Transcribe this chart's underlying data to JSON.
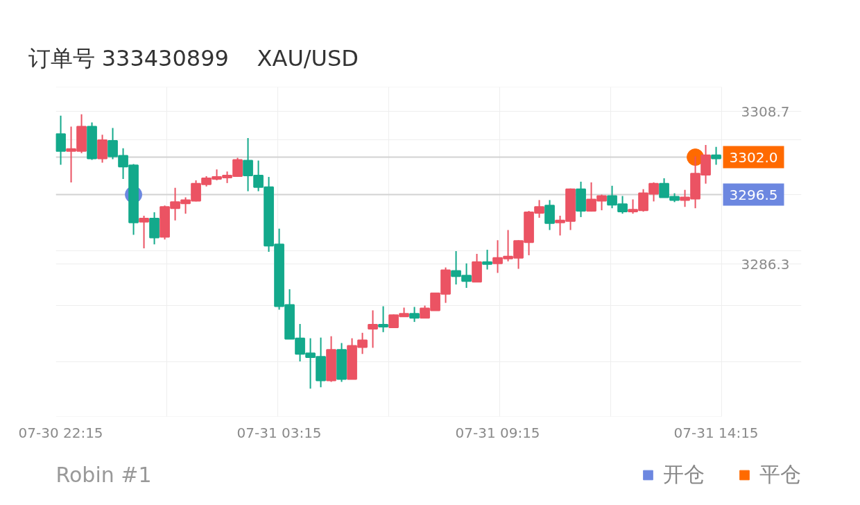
{
  "chart_data": {
    "type": "candlestick",
    "title": "订单号 333430899    XAU/USD",
    "categories": [
      "07-30 22:15",
      null,
      null,
      null,
      null,
      null,
      null,
      null,
      null,
      null,
      null,
      null,
      null,
      null,
      null,
      null,
      null,
      null,
      null,
      null,
      null,
      "07-31 03:15",
      null,
      null,
      null,
      null,
      null,
      null,
      null,
      null,
      null,
      null,
      null,
      null,
      null,
      null,
      null,
      null,
      null,
      null,
      null,
      null,
      "07-31 09:15",
      null,
      null,
      null,
      null,
      null,
      null,
      null,
      null,
      null,
      null,
      null,
      null,
      null,
      null,
      null,
      null,
      null,
      null,
      null,
      null,
      "07-31 14:15"
    ],
    "ohlc": [
      [
        3305.4,
        3308.1,
        3300.9,
        3302.9
      ],
      [
        3302.9,
        3306.5,
        3298.3,
        3303.2
      ],
      [
        3302.9,
        3308.3,
        3302.6,
        3306.5
      ],
      [
        3306.5,
        3307.1,
        3301.6,
        3301.8
      ],
      [
        3301.8,
        3305.3,
        3301.2,
        3304.5
      ],
      [
        3304.4,
        3306.3,
        3301.7,
        3302.1
      ],
      [
        3302.2,
        3303.3,
        3298.8,
        3300.6
      ],
      [
        3300.8,
        3301.0,
        3290.6,
        3292.4
      ],
      [
        3292.5,
        3293.4,
        3288.6,
        3293.0
      ],
      [
        3293.0,
        3293.9,
        3289.2,
        3290.2
      ],
      [
        3290.3,
        3294.9,
        3289.9,
        3294.7
      ],
      [
        3294.5,
        3297.5,
        3292.7,
        3295.4
      ],
      [
        3295.2,
        3296.1,
        3293.7,
        3295.7
      ],
      [
        3295.6,
        3298.6,
        3295.5,
        3298.1
      ],
      [
        3298.0,
        3299.2,
        3297.7,
        3298.9
      ],
      [
        3298.8,
        3300.2,
        3298.6,
        3299.1
      ],
      [
        3299.0,
        3299.9,
        3298.2,
        3299.3
      ],
      [
        3299.2,
        3301.9,
        3299.1,
        3301.6
      ],
      [
        3301.5,
        3304.8,
        3297.0,
        3299.3
      ],
      [
        3299.3,
        3301.5,
        3297.0,
        3297.6
      ],
      [
        3297.6,
        3299.1,
        3288.1,
        3289.0
      ],
      [
        3289.2,
        3291.5,
        3279.6,
        3280.1
      ],
      [
        3280.3,
        3282.6,
        3275.3,
        3275.3
      ],
      [
        3275.4,
        3277.5,
        3272.0,
        3273.1
      ],
      [
        3273.2,
        3275.4,
        3268.0,
        3272.6
      ],
      [
        3272.7,
        3275.5,
        3268.2,
        3269.2
      ],
      [
        3269.2,
        3275.7,
        3269.0,
        3273.7
      ],
      [
        3273.7,
        3274.7,
        3269.0,
        3269.4
      ],
      [
        3269.4,
        3275.4,
        3269.4,
        3274.3
      ],
      [
        3274.1,
        3276.2,
        3273.1,
        3275.1
      ],
      [
        3276.8,
        3279.5,
        3274.0,
        3277.4
      ],
      [
        3277.4,
        3280.1,
        3276.3,
        3277.1
      ],
      [
        3277.0,
        3278.9,
        3277.0,
        3278.8
      ],
      [
        3278.6,
        3279.9,
        3278.6,
        3279.0
      ],
      [
        3279.0,
        3280.0,
        3277.8,
        3278.4
      ],
      [
        3278.4,
        3280.2,
        3278.4,
        3279.8
      ],
      [
        3279.5,
        3282.0,
        3279.5,
        3282.0
      ],
      [
        3281.9,
        3285.8,
        3280.6,
        3285.4
      ],
      [
        3285.3,
        3288.2,
        3283.3,
        3284.5
      ],
      [
        3284.6,
        3286.4,
        3282.8,
        3283.8
      ],
      [
        3283.7,
        3287.8,
        3283.7,
        3286.6
      ],
      [
        3286.6,
        3288.4,
        3285.5,
        3286.3
      ],
      [
        3286.4,
        3289.8,
        3285.0,
        3287.2
      ],
      [
        3287.1,
        3291.3,
        3286.7,
        3287.4
      ],
      [
        3287.2,
        3289.8,
        3285.6,
        3289.7
      ],
      [
        3289.5,
        3294.1,
        3287.6,
        3293.9
      ],
      [
        3293.8,
        3295.7,
        3293.1,
        3294.7
      ],
      [
        3294.9,
        3295.7,
        3291.3,
        3292.3
      ],
      [
        3292.4,
        3293.4,
        3290.5,
        3292.7
      ],
      [
        3292.6,
        3297.4,
        3291.3,
        3297.3
      ],
      [
        3297.3,
        3298.4,
        3293.2,
        3294.1
      ],
      [
        3294.1,
        3298.3,
        3294.0,
        3295.8
      ],
      [
        3295.6,
        3296.5,
        3294.2,
        3296.3
      ],
      [
        3296.3,
        3297.8,
        3294.5,
        3295.0
      ],
      [
        3295.1,
        3296.3,
        3293.7,
        3294.0
      ],
      [
        3294.0,
        3295.8,
        3293.7,
        3294.3
      ],
      [
        3294.2,
        3297.3,
        3294.0,
        3296.7
      ],
      [
        3296.6,
        3298.3,
        3295.5,
        3298.1
      ],
      [
        3298.1,
        3298.9,
        3296.1,
        3296.1
      ],
      [
        3296.2,
        3296.7,
        3295.4,
        3295.7
      ],
      [
        3295.7,
        3297.2,
        3294.7,
        3296.1
      ],
      [
        3295.9,
        3302.1,
        3294.5,
        3299.6
      ],
      [
        3299.4,
        3303.8,
        3298.1,
        3302.3
      ],
      [
        3302.3,
        3303.5,
        3300.9,
        3301.8
      ]
    ],
    "colors": [
      "#13a98b",
      "#eb5363",
      "#eb5363",
      "#13a98b",
      "#eb5363",
      "#13a98b",
      "#13a98b",
      "#13a98b",
      "#eb5363",
      "#13a98b",
      "#eb5363",
      "#eb5363",
      "#eb5363",
      "#eb5363",
      "#eb5363",
      "#eb5363",
      "#eb5363",
      "#eb5363",
      "#13a98b",
      "#13a98b",
      "#13a98b",
      "#13a98b",
      "#13a98b",
      "#13a98b",
      "#13a98b",
      "#13a98b",
      "#eb5363",
      "#13a98b",
      "#eb5363",
      "#eb5363",
      "#eb5363",
      "#13a98b",
      "#eb5363",
      "#eb5363",
      "#13a98b",
      "#eb5363",
      "#eb5363",
      "#eb5363",
      "#13a98b",
      "#13a98b",
      "#eb5363",
      "#13a98b",
      "#eb5363",
      "#eb5363",
      "#eb5363",
      "#eb5363",
      "#eb5363",
      "#13a98b",
      "#eb5363",
      "#eb5363",
      "#13a98b",
      "#eb5363",
      "#eb5363",
      "#13a98b",
      "#13a98b",
      "#eb5363",
      "#eb5363",
      "#eb5363",
      "#13a98b",
      "#13a98b",
      "#eb5363",
      "#eb5363",
      "#eb5363",
      "#13a98b"
    ],
    "series": [
      {
        "name": "开仓",
        "type": "scatter",
        "color": "#6c87e0",
        "values": [
          null,
          null,
          null,
          null,
          null,
          null,
          null,
          3296.5,
          null,
          null,
          null,
          null,
          null,
          null,
          null,
          null,
          null,
          null,
          null,
          null,
          null,
          null,
          null,
          null,
          null,
          null,
          null,
          null,
          null,
          null,
          null,
          null,
          null,
          null,
          null,
          null,
          null,
          null,
          null,
          null,
          null,
          null,
          null,
          null,
          null,
          null,
          null,
          null,
          null,
          null,
          null,
          null,
          null,
          null,
          null,
          null,
          null,
          null,
          null,
          null,
          null,
          null,
          null,
          null
        ]
      },
      {
        "name": "平仓",
        "type": "scatter",
        "color": "#ff6a00",
        "values": [
          null,
          null,
          null,
          null,
          null,
          null,
          null,
          null,
          null,
          null,
          null,
          null,
          null,
          null,
          null,
          null,
          null,
          null,
          null,
          null,
          null,
          null,
          null,
          null,
          null,
          null,
          null,
          null,
          null,
          null,
          null,
          null,
          null,
          null,
          null,
          null,
          null,
          null,
          null,
          null,
          null,
          null,
          null,
          null,
          null,
          null,
          null,
          null,
          null,
          null,
          null,
          null,
          null,
          null,
          null,
          null,
          null,
          null,
          null,
          null,
          null,
          3302.0,
          null,
          null
        ]
      }
    ],
    "marker": "circle",
    "ylim": [
      3263.9,
      3312.3
    ],
    "yticks": [
      3308.7,
      3286.3,
      {
        "value": 3304.6,
        "label": null
      },
      {
        "value": 3296.5,
        "label": null
      },
      {
        "value": 3288.3,
        "label": null
      },
      {
        "value": 3280.2,
        "label": null
      },
      {
        "value": 3272.0,
        "label": null
      }
    ],
    "ref_lines": [
      {
        "axis": "y",
        "value": 3302.0,
        "label": "3302.0"
      },
      {
        "axis": "y",
        "value": 3296.5,
        "label": "3296.5"
      }
    ],
    "grid": true,
    "legend": "bottom right",
    "annotations": [
      "Robin #1"
    ]
  }
}
